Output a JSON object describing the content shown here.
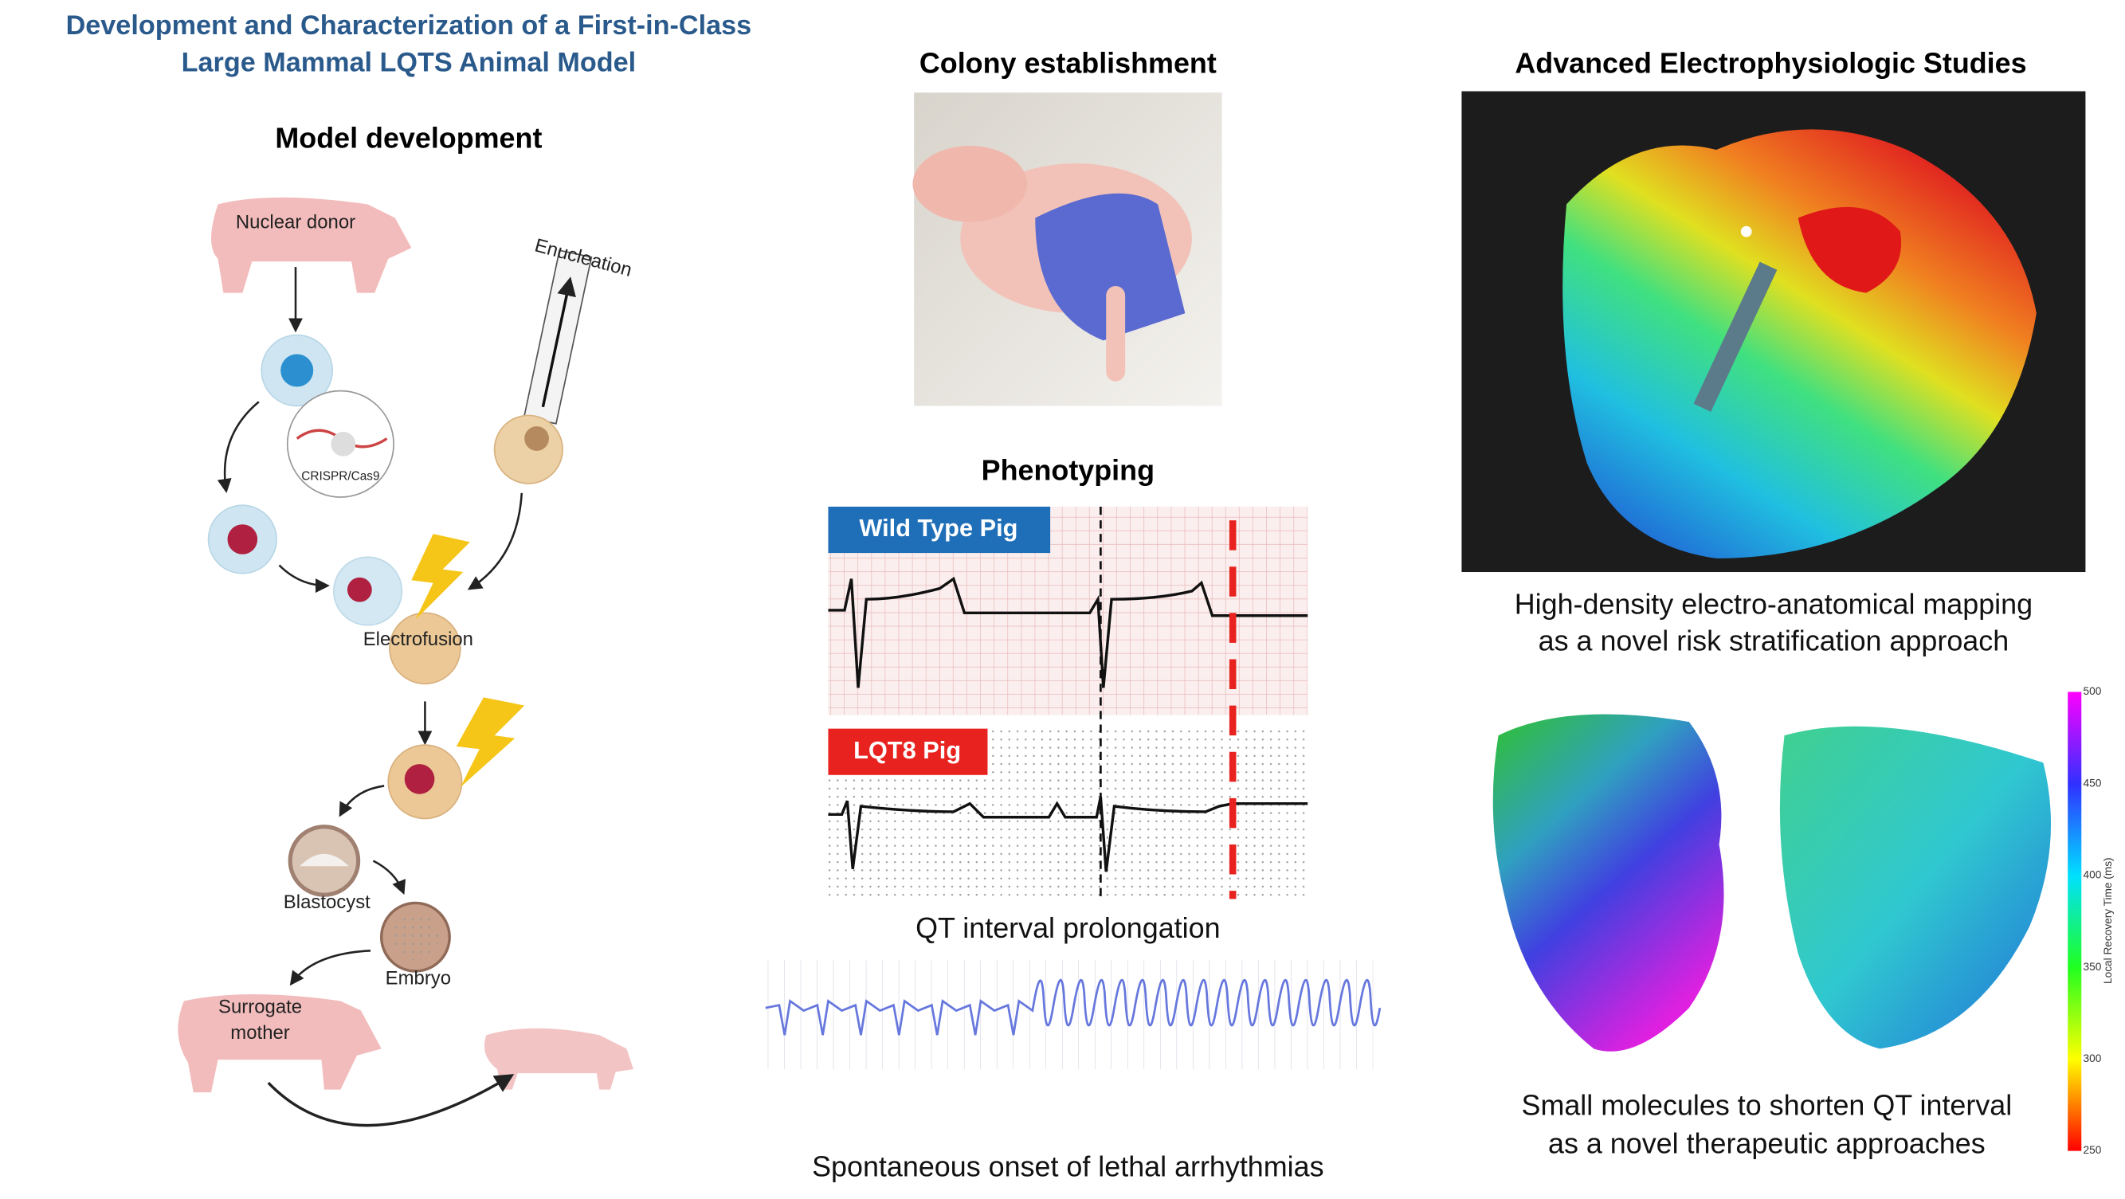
{
  "title": [
    "Development and Characterization of a First-in-Class",
    "Large Mammal LQTS Animal Model"
  ],
  "model_development": {
    "heading": "Model development",
    "nuclear_donor": "Nuclear donor",
    "enucleation": "Enucleation",
    "crispr": "CRISPR/Cas9",
    "electrofusion": "Electrofusion",
    "blastocyst": "Blastocyst",
    "embryo": "Embryo",
    "surrogate": [
      "Surrogate",
      "mother"
    ]
  },
  "colony": {
    "heading": "Colony establishment"
  },
  "phenotyping": {
    "heading": "Phenotyping",
    "wild_type": "Wild Type Pig",
    "lqt8": "LQT8 Pig",
    "caption_qt": "QT interval prolongation",
    "caption_arrhythmia": "Spontaneous onset of lethal arrhythmias"
  },
  "electrophysiology": {
    "heading": "Advanced Electrophysiologic Studies",
    "caption": [
      "High-density electro-anatomical mapping",
      "as a novel risk stratification approach"
    ]
  },
  "therapy": {
    "caption": [
      "Small molecules to shorten QT interval",
      "as a novel therapeutic approaches"
    ],
    "colorbar": {
      "label": "Local Recovery Time (ms)",
      "ticks": [
        250,
        300,
        350,
        400,
        450,
        500
      ]
    }
  }
}
